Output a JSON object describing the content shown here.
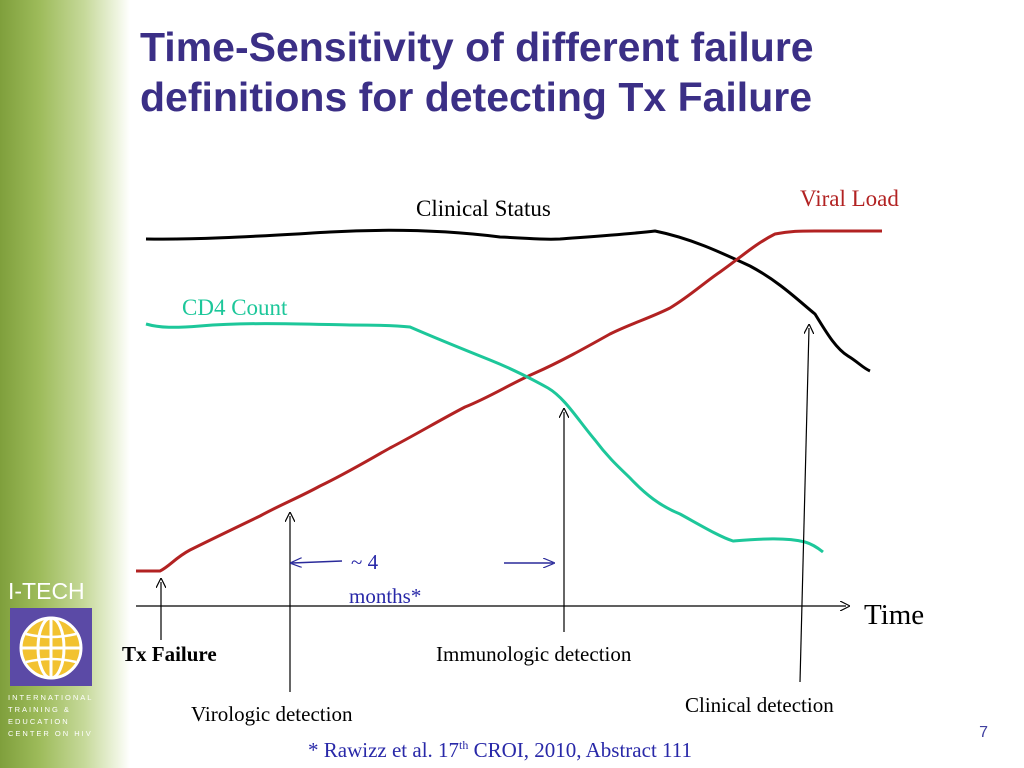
{
  "slide": {
    "title_line1": "Time-Sensitivity of different failure",
    "title_line2": "definitions for detecting Tx Failure",
    "page_number": "7"
  },
  "logo": {
    "name": "I-TECH",
    "line1": "INTERNATIONAL",
    "line2": "TRAINING &",
    "line3": "EDUCATION",
    "line4": "CENTER ON HIV"
  },
  "diagram": {
    "curves": {
      "clinical_status": "Clinical Status",
      "viral_load": "Viral Load",
      "cd4_count": "CD4 Count"
    },
    "axis_label": "Time",
    "markers": {
      "tx_failure": "Tx Failure",
      "virologic": "Virologic detection",
      "immunologic": "Immunologic detection",
      "clinical": "Clinical detection"
    },
    "interval_line1": "~ 4",
    "interval_line2": "months*"
  },
  "citation": {
    "prefix": "* Rawizz et al. 17",
    "superscript": "th",
    "suffix": " CROI, 2010, Abstract 111"
  },
  "colors": {
    "title": "#3b2f86",
    "clinical_status": "#000000",
    "viral_load": "#b22222",
    "cd4_count": "#1dc79a",
    "citation": "#2828a8"
  }
}
